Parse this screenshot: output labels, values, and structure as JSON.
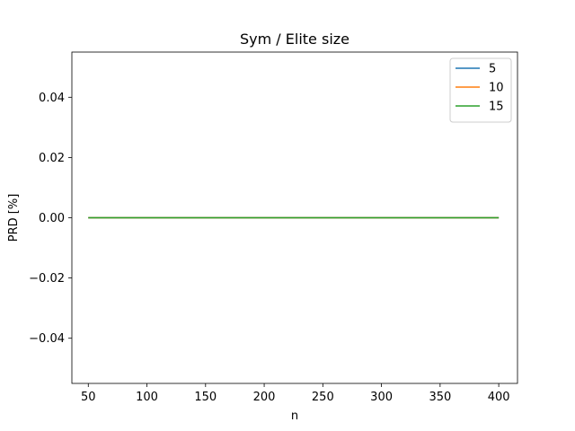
{
  "chart_data": {
    "type": "line",
    "title": "Sym / Elite size",
    "xlabel": "n",
    "ylabel": "PRD [%]",
    "x": [
      50,
      100,
      150,
      200,
      250,
      300,
      350,
      400
    ],
    "xlim": [
      36,
      416
    ],
    "ylim": [
      -0.055,
      0.055
    ],
    "xticks": [
      "50",
      "100",
      "150",
      "200",
      "250",
      "300",
      "350",
      "400"
    ],
    "yticks": [
      "−0.04",
      "−0.02",
      "0.00",
      "0.02",
      "0.04"
    ],
    "ytick_values": [
      -0.04,
      -0.02,
      0.0,
      0.02,
      0.04
    ],
    "xtick_values": [
      50,
      100,
      150,
      200,
      250,
      300,
      350,
      400
    ],
    "grid": false,
    "legend_position": "top-right",
    "series": [
      {
        "name": "5",
        "color": "#1f77b4",
        "values": [
          0,
          0,
          0,
          0,
          0,
          0,
          0,
          0
        ]
      },
      {
        "name": "10",
        "color": "#ff7f0e",
        "values": [
          0,
          0,
          0,
          0,
          0,
          0,
          0,
          0
        ]
      },
      {
        "name": "15",
        "color": "#2ca02c",
        "values": [
          0,
          0,
          0,
          0,
          0,
          0,
          0,
          0
        ]
      }
    ]
  }
}
